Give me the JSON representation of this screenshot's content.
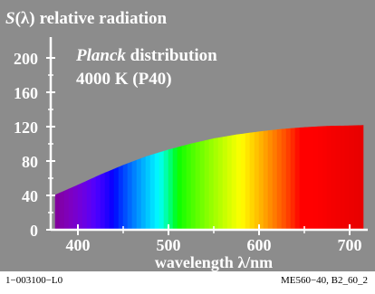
{
  "chart_data": {
    "type": "area",
    "title": "relative radiation",
    "title_symbol": "S",
    "title_paren": "(λ)",
    "annotation_line1_italic": "Planck",
    "annotation_line1_rest": " distribution",
    "annotation_line2": "4000 K (P40)",
    "xlabel": "wavelength λ/nm",
    "xlim": [
      370,
      720
    ],
    "ylim": [
      0,
      220
    ],
    "xticks": [
      "400",
      "500",
      "600",
      "700"
    ],
    "yticks": [
      "0",
      "40",
      "80",
      "120",
      "160",
      "200"
    ],
    "x": [
      375,
      400,
      425,
      450,
      475,
      500,
      525,
      550,
      575,
      600,
      625,
      650,
      675,
      700,
      715
    ],
    "y": [
      40.5,
      52,
      64,
      75,
      85,
      93,
      100,
      106,
      110.5,
      114,
      117,
      119,
      120.5,
      121,
      121.5
    ],
    "fill": "visible-spectrum colors (violet → red)",
    "grid": false,
    "background": "#8c8c8c"
  },
  "footer": {
    "left": "1−003100−L0",
    "right": "ME560−40, B2_60_2"
  }
}
